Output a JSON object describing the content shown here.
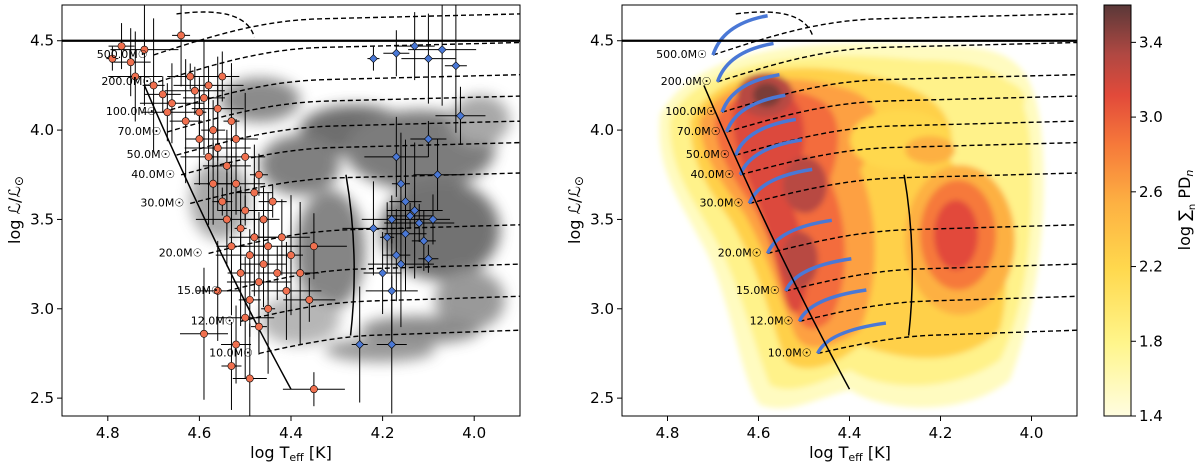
{
  "chart_data": [
    {
      "type": "scatter",
      "panel": "left",
      "xlabel": "log T_eff [K]",
      "ylabel": "log L/L☉",
      "xlim": [
        4.9,
        3.9
      ],
      "ylim": [
        2.4,
        4.7
      ],
      "xticks": [
        "4.8",
        "4.6",
        "4.4",
        "4.2",
        "4.0"
      ],
      "yticks": [
        "2.5",
        "3.0",
        "3.5",
        "4.0",
        "4.5"
      ],
      "grid": false,
      "limit_line_logL": 4.5,
      "background": "grayscale density map",
      "series": [
        {
          "color": "#f0704f",
          "points": [
            [
              4.79,
              4.4
            ],
            [
              4.77,
              4.47
            ],
            [
              4.75,
              4.38
            ],
            [
              4.74,
              4.3
            ],
            [
              4.72,
              4.45
            ],
            [
              4.7,
              4.25
            ],
            [
              4.68,
              4.2
            ],
            [
              4.67,
              4.1
            ],
            [
              4.66,
              4.15
            ],
            [
              4.64,
              4.53
            ],
            [
              4.63,
              4.05
            ],
            [
              4.62,
              4.3
            ],
            [
              4.61,
              4.22
            ],
            [
              4.6,
              4.1
            ],
            [
              4.6,
              3.95
            ],
            [
              4.59,
              4.18
            ],
            [
              4.58,
              3.85
            ],
            [
              4.58,
              4.25
            ],
            [
              4.57,
              4.0
            ],
            [
              4.57,
              3.7
            ],
            [
              4.56,
              4.12
            ],
            [
              4.56,
              3.9
            ],
            [
              4.55,
              3.6
            ],
            [
              4.55,
              4.3
            ],
            [
              4.54,
              3.8
            ],
            [
              4.54,
              3.5
            ],
            [
              4.53,
              4.05
            ],
            [
              4.53,
              3.35
            ],
            [
              4.52,
              3.95
            ],
            [
              4.52,
              3.7
            ],
            [
              4.51,
              3.45
            ],
            [
              4.51,
              3.2
            ],
            [
              4.5,
              3.85
            ],
            [
              4.5,
              3.55
            ],
            [
              4.49,
              3.3
            ],
            [
              4.49,
              3.05
            ],
            [
              4.48,
              3.65
            ],
            [
              4.48,
              3.4
            ],
            [
              4.47,
              3.15
            ],
            [
              4.47,
              3.75
            ],
            [
              4.46,
              3.5
            ],
            [
              4.46,
              3.25
            ],
            [
              4.45,
              3.35
            ],
            [
              4.45,
              3.0
            ],
            [
              4.44,
              3.6
            ],
            [
              4.43,
              3.2
            ],
            [
              4.42,
              3.4
            ],
            [
              4.41,
              3.1
            ],
            [
              4.4,
              3.3
            ],
            [
              4.38,
              3.2
            ],
            [
              4.36,
              3.05
            ],
            [
              4.35,
              3.35
            ],
            [
              4.53,
              2.68
            ],
            [
              4.49,
              2.61
            ],
            [
              4.59,
              2.86
            ],
            [
              4.35,
              2.55
            ],
            [
              4.47,
              2.9
            ],
            [
              4.52,
              2.8
            ],
            [
              4.56,
              3.1
            ],
            [
              4.5,
              2.95
            ]
          ]
        },
        {
          "color": "#4a78d6",
          "points": [
            [
              4.22,
              4.4
            ],
            [
              4.17,
              4.43
            ],
            [
              4.13,
              4.47
            ],
            [
              4.1,
              4.4
            ],
            [
              4.07,
              4.45
            ],
            [
              4.04,
              4.36
            ],
            [
              4.1,
              3.95
            ],
            [
              4.03,
              4.08
            ],
            [
              4.17,
              3.85
            ],
            [
              4.16,
              3.7
            ],
            [
              4.15,
              3.6
            ],
            [
              4.14,
              3.52
            ],
            [
              4.18,
              3.5
            ],
            [
              4.19,
              3.4
            ],
            [
              4.17,
              3.3
            ],
            [
              4.15,
              3.42
            ],
            [
              4.13,
              3.55
            ],
            [
              4.12,
              3.48
            ],
            [
              4.11,
              3.38
            ],
            [
              4.2,
              3.2
            ],
            [
              4.18,
              3.1
            ],
            [
              4.16,
              3.25
            ],
            [
              4.1,
              3.28
            ],
            [
              4.09,
              3.5
            ],
            [
              4.08,
              3.75
            ],
            [
              4.22,
              3.45
            ],
            [
              4.25,
              2.8
            ],
            [
              4.18,
              2.8
            ]
          ]
        }
      ],
      "track_labels": [
        "500.0M☉",
        "200.0M☉",
        "100.0M☉",
        "70.0M☉",
        "50.0M☉",
        "40.0M☉",
        "30.0M☉",
        "20.0M☉",
        "15.0M☉",
        "12.0M☉",
        "10.0M☉"
      ]
    },
    {
      "type": "heatmap",
      "panel": "right",
      "xlabel": "log T_eff [K]",
      "ylabel": "log L/L☉",
      "xlim": [
        4.9,
        3.9
      ],
      "ylim": [
        2.4,
        4.7
      ],
      "xticks": [
        "4.8",
        "4.6",
        "4.4",
        "4.2",
        "4.0"
      ],
      "yticks": [
        "2.5",
        "3.0",
        "3.5",
        "4.0",
        "4.5"
      ],
      "limit_line_logL": 4.5,
      "colorbar": {
        "label": "log ∑ PD_n",
        "range": [
          1.4,
          3.6
        ],
        "ticks": [
          "1.4",
          "1.8",
          "2.2",
          "2.6",
          "3.0",
          "3.4"
        ],
        "colormap": "YlOrRd + gray"
      },
      "track_labels": [
        "500.0M☉",
        "200.0M☉",
        "100.0M☉",
        "70.0M☉",
        "50.0M☉",
        "40.0M☉",
        "30.0M☉",
        "20.0M☉",
        "15.0M☉",
        "12.0M☉",
        "10.0M☉"
      ]
    }
  ]
}
